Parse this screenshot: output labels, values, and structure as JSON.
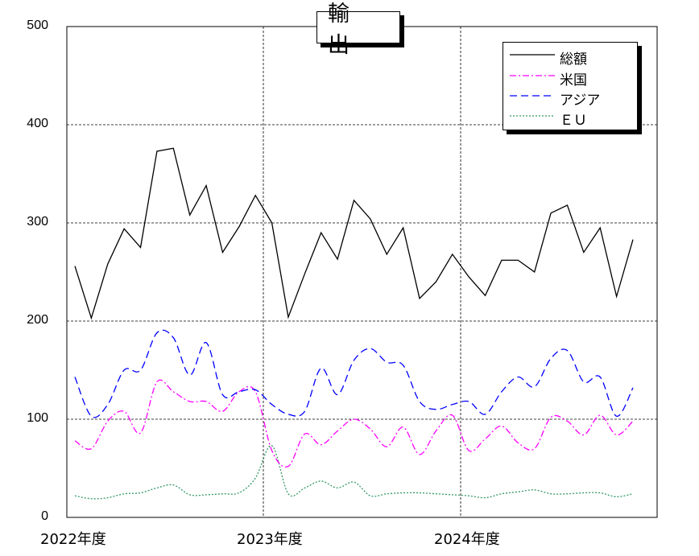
{
  "chart_data": {
    "type": "line",
    "title": "輸　出",
    "ylim": [
      0,
      500
    ],
    "yticks": [
      "0",
      "100",
      "200",
      "300",
      "400",
      "500"
    ],
    "xticks": [
      "2022年度",
      "2023年度",
      "2024年度"
    ],
    "grid": true,
    "legend_position": "top-right",
    "series": [
      {
        "name": "総額",
        "color": "#000000",
        "style": "solid",
        "values": [
          256,
          203,
          258,
          294,
          275,
          373,
          376,
          308,
          338,
          270,
          296,
          328,
          300,
          204,
          248,
          290,
          263,
          323,
          304,
          268,
          295,
          223,
          240,
          268,
          245,
          226,
          262,
          262,
          250,
          310,
          318,
          270,
          295,
          225,
          283
        ]
      },
      {
        "name": "米国",
        "color": "#ff00ff",
        "style": "dashdot",
        "values": [
          78,
          70,
          98,
          108,
          86,
          138,
          128,
          118,
          118,
          108,
          128,
          128,
          68,
          52,
          85,
          74,
          88,
          100,
          90,
          72,
          92,
          64,
          88,
          104,
          68,
          80,
          93,
          76,
          70,
          102,
          98,
          84,
          104,
          84,
          98
        ]
      },
      {
        "name": "アジア",
        "color": "#0000ff",
        "style": "dashed",
        "values": [
          143,
          103,
          115,
          150,
          150,
          188,
          183,
          145,
          178,
          125,
          128,
          130,
          115,
          105,
          108,
          152,
          125,
          160,
          172,
          158,
          155,
          118,
          110,
          115,
          118,
          105,
          128,
          143,
          133,
          162,
          170,
          138,
          143,
          103,
          132
        ]
      },
      {
        "name": "ＥＵ",
        "color": "#339966",
        "style": "dotted",
        "values": [
          22,
          19,
          20,
          24,
          25,
          30,
          33,
          23,
          23,
          24,
          25,
          40,
          73,
          24,
          30,
          37,
          30,
          36,
          22,
          24,
          25,
          25,
          24,
          23,
          22,
          20,
          24,
          26,
          28,
          24,
          24,
          25,
          25,
          21,
          24
        ]
      }
    ]
  }
}
